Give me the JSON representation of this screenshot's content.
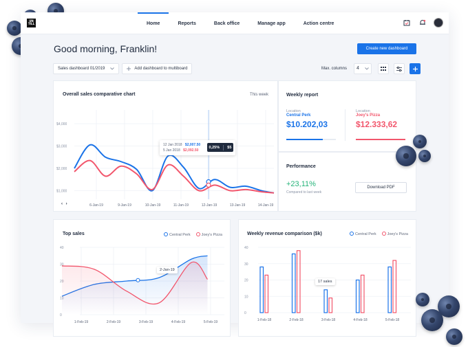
{
  "app": {
    "logo_text": "UN TILL"
  },
  "nav": {
    "items": [
      {
        "label": "Home",
        "active": true
      },
      {
        "label": "Reports",
        "active": false
      },
      {
        "label": "Back office",
        "active": false
      },
      {
        "label": "Manage app",
        "active": false
      },
      {
        "label": "Action centre",
        "active": false
      }
    ],
    "icons": [
      "calendar-check-icon",
      "bell-icon",
      "avatar"
    ]
  },
  "header": {
    "greeting": "Good morning, Franklin!",
    "create_button": "Create new dashboard"
  },
  "toolbar": {
    "dashboard_select": "Sales dashboard 01/2019",
    "add_to_multiboard": "Add dashboard to multiboard",
    "max_columns_label": "Max. columns",
    "max_columns_value": "4",
    "icons": [
      "grid-view-icon",
      "settings-sliders-icon",
      "plus-icon"
    ]
  },
  "sales_chart": {
    "title": "Overall sales comparative chart",
    "period": "This week",
    "tooltip": {
      "row1_date": "12 Jan 2018",
      "row1_value": "$2,007.50",
      "row2_date": "5 Jan 2018",
      "row2_value": "$2,092.50",
      "badge_pct": "0,25%",
      "badge_currency": "$5"
    }
  },
  "weekly_report": {
    "title": "Weekly report",
    "location_label": "Location",
    "loc1": {
      "name": "Central Perk",
      "value": "$10.202,03",
      "color": "#1a73e8",
      "progress": 0.73
    },
    "loc2": {
      "name": "Joey's Pizza",
      "value": "$12.333,62",
      "color": "#f2566c",
      "progress": 1.0
    }
  },
  "performance": {
    "title": "Performance",
    "change": "+23,11%",
    "note": "Compared to last week",
    "download": "Download PDF"
  },
  "top_sales": {
    "title": "Top sales",
    "tooltip_date": "2-Jan-19"
  },
  "weekly_revenue": {
    "title": "Weekly revenue comparison ($k)",
    "annotation": "17 sales"
  },
  "legend": {
    "series1": "Central Perk",
    "series2": "Joey's Pizza"
  },
  "colors": {
    "blue": "#1a73e8",
    "red": "#f2566c",
    "green": "#26b47a"
  },
  "chart_data": [
    {
      "type": "line",
      "title": "Overall sales comparative chart",
      "categories": [
        "6-Jan-19",
        "9-Jan-19",
        "10-Jan-19",
        "11-Jan-19",
        "12-Jan-19",
        "13-Jan-19",
        "14-Jan-19"
      ],
      "y_ticks": [
        "$4,000",
        "$3,000",
        "$2,000",
        "$1,000"
      ],
      "ylim": [
        0,
        4000
      ],
      "series": [
        {
          "name": "Central Perk",
          "x": [
            0,
            0.5,
            1,
            1.5,
            2,
            2.5,
            3,
            3.5,
            4,
            4.5,
            5,
            5.5,
            6,
            6.4
          ],
          "values": [
            2000,
            3050,
            2500,
            2300,
            1950,
            1000,
            2550,
            2050,
            1100,
            1500,
            1150,
            1200,
            1000,
            900
          ]
        },
        {
          "name": "Joey's Pizza",
          "x": [
            0,
            0.5,
            1,
            1.5,
            2,
            2.5,
            3,
            3.5,
            4,
            4.5,
            5,
            5.5,
            6,
            6.4
          ],
          "values": [
            1850,
            2350,
            1650,
            2100,
            1750,
            1050,
            2150,
            1650,
            1000,
            1250,
            1000,
            1050,
            950,
            900
          ]
        }
      ],
      "grid": true
    },
    {
      "type": "area",
      "title": "Top sales",
      "categories": [
        "1-Feb-19",
        "2-Feb-19",
        "3-Feb-19",
        "4-Feb-19",
        "5-Feb-19"
      ],
      "y_ticks": [
        "40",
        "30",
        "20",
        "10",
        "0"
      ],
      "ylim": [
        0,
        40
      ],
      "series": [
        {
          "name": "Central Perk",
          "x": [
            0,
            1,
            2,
            3,
            4,
            4.5
          ],
          "values": [
            11,
            18,
            20,
            22,
            33,
            35
          ]
        },
        {
          "name": "Joey's Pizza",
          "x": [
            0,
            1,
            2,
            3,
            4,
            4.5
          ],
          "values": [
            29,
            27,
            14,
            7,
            31,
            21
          ]
        }
      ],
      "grid": true
    },
    {
      "type": "bar",
      "title": "Weekly revenue comparison ($k)",
      "categories": [
        "1-Feb-18",
        "2-Feb-18",
        "3-Feb-18",
        "4-Feb-18",
        "5-Feb-18"
      ],
      "y_ticks": [
        "40",
        "30",
        "20",
        "10",
        "0"
      ],
      "ylim": [
        0,
        40
      ],
      "series": [
        {
          "name": "Central Perk",
          "values": [
            28,
            36,
            14,
            20,
            28
          ]
        },
        {
          "name": "Joey's Pizza",
          "values": [
            23,
            38,
            9,
            23,
            32
          ]
        }
      ],
      "grid": true
    }
  ]
}
